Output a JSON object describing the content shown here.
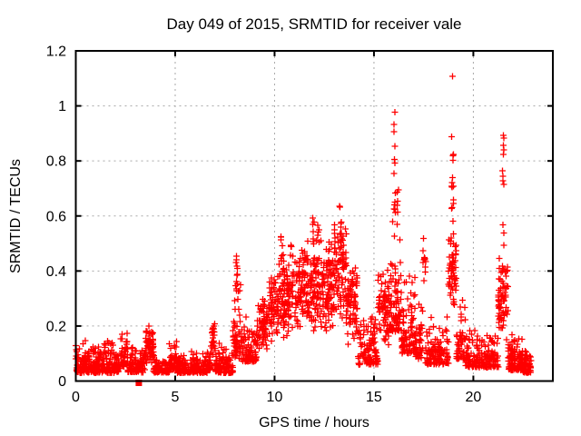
{
  "chart_data": {
    "type": "scatter",
    "title": "Day 049 of 2015, SRMTID for receiver vale",
    "xlabel": "GPS time / hours",
    "ylabel": "SRMTID / TECUs",
    "xlim": [
      0,
      24
    ],
    "ylim": [
      0,
      1.2
    ],
    "xticks": [
      {
        "v": 0,
        "label": "0"
      },
      {
        "v": 5,
        "label": "5"
      },
      {
        "v": 10,
        "label": "10"
      },
      {
        "v": 15,
        "label": "15"
      },
      {
        "v": 20,
        "label": "20"
      }
    ],
    "yticks": [
      {
        "v": 0,
        "label": "0"
      },
      {
        "v": 0.2,
        "label": "0.2"
      },
      {
        "v": 0.4,
        "label": "0.4"
      },
      {
        "v": 0.6,
        "label": "0.6"
      },
      {
        "v": 0.8,
        "label": "0.8"
      },
      {
        "v": 1,
        "label": "1"
      },
      {
        "v": 1.2,
        "label": "1.2"
      }
    ],
    "grid": true,
    "legend": "none",
    "marker": {
      "glyph": "+",
      "color": "#ff0000",
      "size": 7
    },
    "outlier_square": {
      "x": 3.17,
      "y": 0.0,
      "color": "#ff0000",
      "size": 7
    },
    "background": "#ffffff",
    "border_color": "#000000",
    "grid_color": "#a8a8a8",
    "seed": 42,
    "point_bands": [
      [
        0.0,
        2.3,
        0.03,
        0.16,
        270,
        1
      ],
      [
        2.3,
        2.6,
        0.05,
        0.22,
        40,
        1
      ],
      [
        2.6,
        3.5,
        0.03,
        0.13,
        100,
        1
      ],
      [
        3.5,
        3.9,
        0.06,
        0.21,
        60,
        0
      ],
      [
        3.9,
        4.7,
        0.03,
        0.11,
        90,
        1
      ],
      [
        4.7,
        5.1,
        0.04,
        0.17,
        50,
        1
      ],
      [
        5.1,
        6.6,
        0.03,
        0.11,
        160,
        1
      ],
      [
        6.6,
        6.85,
        0.04,
        0.14,
        30,
        1
      ],
      [
        6.85,
        7.0,
        0.06,
        0.235,
        25,
        0
      ],
      [
        7.0,
        7.9,
        0.03,
        0.14,
        100,
        1
      ],
      [
        7.9,
        8.3,
        0.08,
        0.46,
        55,
        1
      ],
      [
        8.3,
        9.1,
        0.07,
        0.25,
        90,
        1
      ],
      [
        9.1,
        9.7,
        0.1,
        0.31,
        70,
        0
      ],
      [
        9.7,
        10.2,
        0.12,
        0.4,
        60,
        0
      ],
      [
        10.2,
        11.2,
        0.14,
        0.48,
        130,
        0
      ],
      [
        11.2,
        12.1,
        0.16,
        0.52,
        120,
        0
      ],
      [
        12.1,
        13.0,
        0.17,
        0.52,
        120,
        0
      ],
      [
        13.0,
        13.6,
        0.2,
        0.58,
        80,
        0
      ],
      [
        13.6,
        14.2,
        0.12,
        0.44,
        80,
        0
      ],
      [
        14.2,
        15.2,
        0.06,
        0.3,
        110,
        1
      ],
      [
        15.2,
        15.85,
        0.12,
        0.44,
        80,
        0
      ],
      [
        15.85,
        16.35,
        0.18,
        0.62,
        70,
        1
      ],
      [
        16.35,
        17.1,
        0.1,
        0.44,
        90,
        1
      ],
      [
        17.1,
        17.45,
        0.08,
        0.3,
        40,
        1
      ],
      [
        17.45,
        17.6,
        0.3,
        0.52,
        12,
        0
      ],
      [
        17.6,
        18.75,
        0.06,
        0.25,
        120,
        1
      ],
      [
        18.75,
        19.15,
        0.25,
        0.58,
        60,
        0
      ],
      [
        19.15,
        19.6,
        0.08,
        0.33,
        50,
        1
      ],
      [
        19.6,
        21.25,
        0.05,
        0.2,
        180,
        1
      ],
      [
        21.25,
        21.75,
        0.12,
        0.47,
        70,
        0
      ],
      [
        21.75,
        22.45,
        0.04,
        0.18,
        120,
        1
      ],
      [
        22.45,
        22.9,
        0.03,
        0.13,
        60,
        1
      ]
    ],
    "spike_columns": [
      [
        16.05,
        0.6,
        1.045,
        14,
        0.05
      ],
      [
        16.2,
        0.55,
        0.85,
        6,
        0.05
      ],
      [
        18.95,
        0.55,
        1.12,
        16,
        0.05
      ],
      [
        21.5,
        0.45,
        0.935,
        12,
        0.04
      ],
      [
        11.95,
        0.5,
        0.62,
        6,
        0.04
      ],
      [
        12.2,
        0.5,
        0.6,
        5,
        0.04
      ],
      [
        13.3,
        0.5,
        0.635,
        8,
        0.05
      ],
      [
        10.35,
        0.45,
        0.53,
        5,
        0.04
      ],
      [
        10.85,
        0.44,
        0.5,
        4,
        0.04
      ],
      [
        8.1,
        0.3,
        0.455,
        8,
        0.04
      ]
    ]
  }
}
